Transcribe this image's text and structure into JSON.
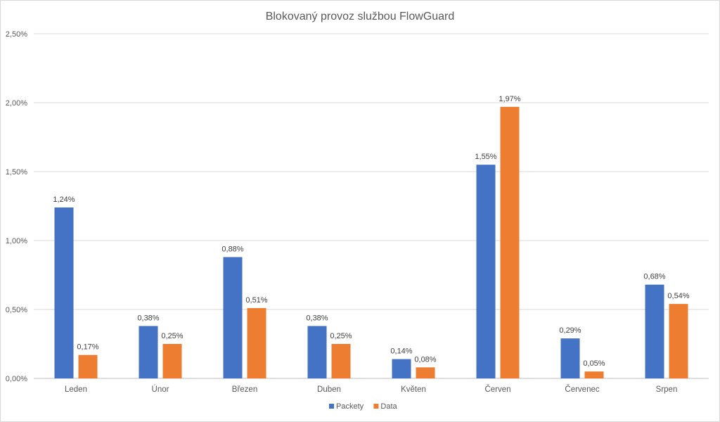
{
  "chart_data": {
    "type": "bar",
    "title": "Blokovaný provoz službou FlowGuard",
    "xlabel": "",
    "ylabel": "",
    "ylim": [
      0,
      2.5
    ],
    "y_ticks": [
      "0,00%",
      "0,50%",
      "1,00%",
      "1,50%",
      "2,00%",
      "2,50%"
    ],
    "y_tick_values": [
      0,
      0.5,
      1.0,
      1.5,
      2.0,
      2.5
    ],
    "grid": true,
    "legend_position": "bottom",
    "categories": [
      "Leden",
      "Únor",
      "Březen",
      "Duben",
      "Květen",
      "Červen",
      "Červenec",
      "Srpen"
    ],
    "series": [
      {
        "name": "Packety",
        "color": "#4472C4",
        "values": [
          1.24,
          0.38,
          0.88,
          0.38,
          0.14,
          1.55,
          0.29,
          0.68
        ],
        "labels": [
          "1,24%",
          "0,38%",
          "0,88%",
          "0,38%",
          "0,14%",
          "1,55%",
          "0,29%",
          "0,68%"
        ]
      },
      {
        "name": "Data",
        "color": "#ED7D31",
        "values": [
          0.17,
          0.25,
          0.51,
          0.25,
          0.08,
          1.97,
          0.05,
          0.54
        ],
        "labels": [
          "0,17%",
          "0,25%",
          "0,51%",
          "0,25%",
          "0,08%",
          "1,97%",
          "0,05%",
          "0,54%"
        ]
      }
    ]
  }
}
